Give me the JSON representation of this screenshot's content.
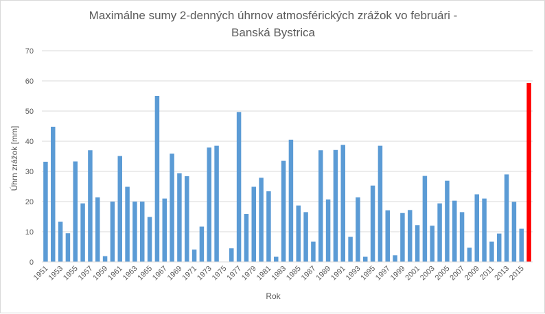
{
  "chart_data": {
    "type": "bar",
    "title_lines": [
      "Maximálne sumy 2-denných úhrnov atmosférických zrážok vo februári -",
      "Banská Bystrica"
    ],
    "xlabel": "Rok",
    "ylabel": "Úhrn zrážok [mm]",
    "ylim": [
      0,
      70
    ],
    "yticks": [
      0,
      10,
      20,
      30,
      40,
      50,
      60,
      70
    ],
    "grid": true,
    "categories": [
      "1951",
      "1952",
      "1953",
      "1954",
      "1955",
      "1956",
      "1957",
      "1958",
      "1959",
      "1960",
      "1961",
      "1962",
      "1963",
      "1964",
      "1965",
      "1966",
      "1967",
      "1968",
      "1969",
      "1970",
      "1971",
      "1972",
      "1973",
      "1974",
      "1975",
      "1976",
      "1977",
      "1978",
      "1979",
      "1980",
      "1981",
      "1982",
      "1983",
      "1984",
      "1985",
      "1986",
      "1987",
      "1988",
      "1989",
      "1990",
      "1991",
      "1992",
      "1993",
      "1994",
      "1995",
      "1996",
      "1997",
      "1998",
      "1999",
      "2000",
      "2001",
      "2002",
      "2003",
      "2004",
      "2005",
      "2006",
      "2007",
      "2008",
      "2009",
      "2010",
      "2011",
      "2012",
      "2013",
      "2014",
      "2015",
      "2016"
    ],
    "xtick_labels": [
      "1951",
      "1953",
      "1955",
      "1957",
      "1959",
      "1961",
      "1963",
      "1965",
      "1967",
      "1969",
      "1971",
      "1973",
      "1975",
      "1977",
      "1979",
      "1981",
      "1983",
      "1985",
      "1987",
      "1989",
      "1991",
      "1993",
      "1995",
      "1997",
      "1999",
      "2001",
      "2003",
      "2005",
      "2007",
      "2009",
      "2011",
      "2013",
      "2015"
    ],
    "values": [
      33.2,
      44.8,
      13.3,
      9.5,
      33.3,
      19.4,
      37.0,
      21.4,
      1.9,
      20.0,
      35.1,
      24.9,
      20.0,
      20.0,
      14.9,
      55.0,
      21.0,
      35.9,
      29.4,
      28.4,
      4.1,
      11.7,
      37.9,
      38.5,
      0,
      4.5,
      49.7,
      15.9,
      24.9,
      27.9,
      23.4,
      1.7,
      33.5,
      40.5,
      18.7,
      16.5,
      6.7,
      37.0,
      20.7,
      37.1,
      38.8,
      8.3,
      21.4,
      1.7,
      25.3,
      38.5,
      17.1,
      2.2,
      16.2,
      17.2,
      12.2,
      28.5,
      12.0,
      19.4,
      26.9,
      20.3,
      16.5,
      4.7,
      22.4,
      21.0,
      6.7,
      9.4,
      29.0,
      19.9,
      11.0,
      59.3
    ],
    "bar_color": "#5b9bd5",
    "highlight_color": "#ff0000",
    "highlight_index": 65,
    "grid_color": "#d9d9d9",
    "text_color": "#595959"
  }
}
